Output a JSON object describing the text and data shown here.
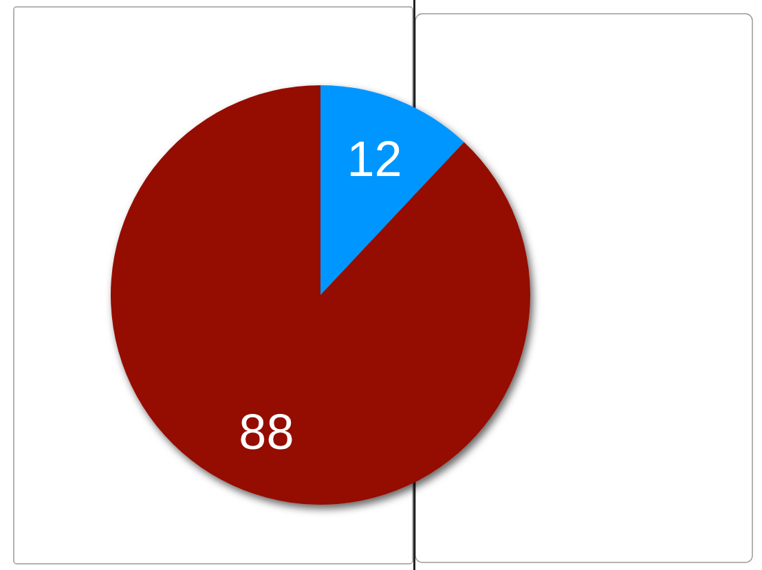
{
  "chart_data": {
    "type": "pie",
    "categories": [
      null,
      null
    ],
    "values": [
      12,
      88
    ],
    "colors": [
      "#0096ff",
      "#941100"
    ],
    "data_labels": true
  }
}
